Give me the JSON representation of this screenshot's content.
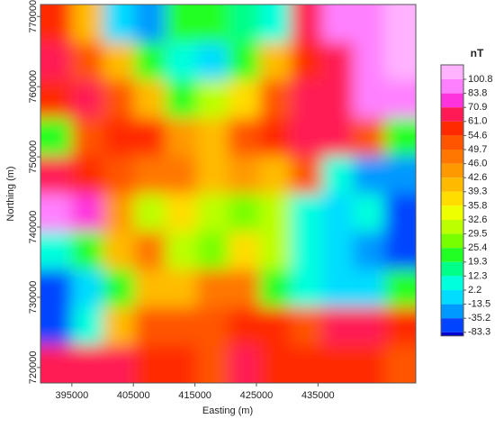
{
  "chart_data": {
    "type": "heatmap",
    "xlabel": "Easting (m)",
    "ylabel": "Northing (m)",
    "colorbar_title": "nT",
    "xlim": [
      389900,
      450900
    ],
    "xticks": [
      395000,
      405000,
      415000,
      425000,
      435000
    ],
    "ylim": [
      717800,
      771700
    ],
    "yticks": [
      720000,
      730000,
      740000,
      750000,
      760000,
      770000
    ],
    "levels": [
      100.8,
      83.8,
      70.9,
      {
        "value": 61,
        "label": "61.0"
      },
      54.6,
      49.7,
      {
        "value": 46,
        "label": "46.0"
      },
      42.6,
      39.3,
      35.8,
      32.6,
      29.5,
      25.4,
      19.3,
      12.3,
      2.2,
      -13.5,
      -35.2,
      -83.3
    ],
    "colors": [
      "#ffb3ff",
      "#ff80ff",
      "#ff33dd",
      "#ff1a55",
      "#ff2a00",
      "#ff5500",
      "#ff7700",
      "#ff9900",
      "#ffbb00",
      "#ffdd00",
      "#eeff00",
      "#bbff00",
      "#77ff00",
      "#22ff22",
      "#00ff88",
      "#00ffdd",
      "#00ddff",
      "#0099ff",
      "#0044ff",
      "#0000cc"
    ],
    "z": [
      [
        60,
        40,
        0,
        -20,
        25,
        20,
        15,
        5,
        65,
        90,
        95,
        110
      ],
      [
        70,
        50,
        40,
        25,
        5,
        0,
        20,
        40,
        55,
        70,
        90,
        105
      ],
      [
        55,
        65,
        50,
        40,
        25,
        30,
        38,
        50,
        65,
        70,
        85,
        95
      ],
      [
        25,
        50,
        60,
        55,
        45,
        42,
        50,
        60,
        65,
        62,
        50,
        20
      ],
      [
        65,
        55,
        50,
        48,
        46,
        42,
        44,
        40,
        50,
        5,
        -20,
        -30
      ],
      [
        90,
        80,
        45,
        30,
        36,
        30,
        28,
        30,
        10,
        -10,
        5,
        -40
      ],
      [
        5,
        25,
        40,
        46,
        32,
        28,
        38,
        30,
        5,
        0,
        -20,
        -60
      ],
      [
        -60,
        0,
        25,
        40,
        42,
        48,
        46,
        25,
        10,
        -10,
        0,
        20
      ],
      [
        -40,
        10,
        40,
        50,
        52,
        50,
        60,
        55,
        50,
        62,
        65,
        55
      ],
      [
        65,
        70,
        62,
        60,
        55,
        50,
        62,
        55,
        60,
        58,
        55,
        52
      ]
    ]
  }
}
